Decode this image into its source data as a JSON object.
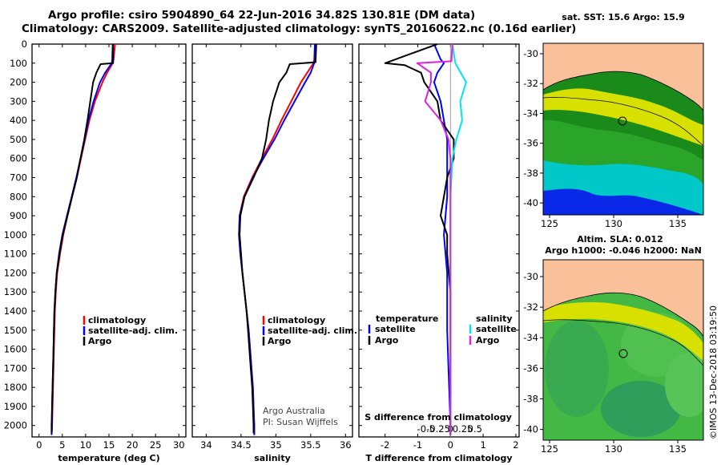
{
  "header": {
    "line1": "Argo profile: csiro 5904890_64 22-Jun-2016 34.82S 130.81E (DM data)",
    "line2": "Climatology: CARS2009. Satellite-adjusted climatology: synTS_20160622.nc (0.16d earlier)"
  },
  "watermark": "©IMOS 13-Dec-2018 03:19:50",
  "map_top": {
    "title": "sat. SST: 15.6 Argo: 15.9",
    "xticks": [
      "125",
      "130",
      "135"
    ],
    "yticks": [
      "-30",
      "-32",
      "-34",
      "-36",
      "-38",
      "-40"
    ]
  },
  "map_bottom": {
    "title1": "Altim. SLA: 0.012",
    "title2": "Argo h1000: -0.046 h2000: NaN",
    "xticks": [
      "125",
      "130",
      "135"
    ],
    "yticks": [
      "-30",
      "-32",
      "-34",
      "-36",
      "-38",
      "-40"
    ]
  },
  "colors": {
    "climatology": "#ff0000",
    "satellite": "#0000ff",
    "argo": "#000000",
    "sat_salinity": "#00e5ee",
    "argo_salinity": "#e020e0",
    "land": "#f9c09a"
  },
  "chart_data": [
    {
      "type": "line",
      "title": "",
      "xlabel": "temperature (deg C)",
      "ylabel": "",
      "xlim": [
        -1.5,
        31.5
      ],
      "ylim": [
        2060,
        0
      ],
      "xticks": [
        "0",
        "5",
        "10",
        "15",
        "20",
        "25",
        "30"
      ],
      "yticks": [
        "0",
        "100",
        "200",
        "300",
        "400",
        "500",
        "600",
        "700",
        "800",
        "900",
        "1000",
        "1100",
        "1200",
        "1300",
        "1400",
        "1500",
        "1600",
        "1700",
        "1800",
        "1900",
        "2000"
      ],
      "legend": [
        "climatology",
        "satellite-adj. clim.",
        "Argo"
      ],
      "series": [
        {
          "name": "climatology",
          "color": "#ff0000",
          "depth": [
            0,
            80,
            100,
            150,
            200,
            300,
            400,
            500,
            600,
            700,
            800,
            900,
            1000,
            1100,
            1200,
            1300,
            1400,
            1500,
            1600,
            1700,
            1800,
            1900,
            2000,
            2050
          ],
          "values": [
            16.3,
            16.0,
            15.8,
            14.6,
            13.6,
            12.0,
            10.8,
            9.9,
            9.0,
            8.1,
            7.1,
            6.1,
            5.2,
            4.5,
            3.9,
            3.6,
            3.4,
            3.3,
            3.2,
            3.1,
            3.0,
            2.9,
            2.8,
            2.7
          ]
        },
        {
          "name": "satellite-adj. clim.",
          "color": "#0000ff",
          "depth": [
            0,
            80,
            100,
            150,
            200,
            300,
            400,
            500,
            600,
            700,
            800,
            900,
            1000,
            1100,
            1200,
            1300,
            1400,
            1500,
            1600,
            1700,
            1800,
            1900,
            2000,
            2050
          ],
          "values": [
            15.8,
            15.7,
            15.6,
            14.2,
            13.1,
            11.7,
            10.6,
            9.8,
            8.9,
            8.0,
            7.0,
            6.0,
            5.0,
            4.3,
            3.8,
            3.5,
            3.3,
            3.2,
            3.1,
            3.0,
            2.9,
            2.8,
            2.8,
            2.7
          ]
        },
        {
          "name": "Argo",
          "color": "#000000",
          "depth": [
            0,
            100,
            105,
            150,
            200,
            300,
            400,
            500,
            600,
            700,
            800,
            900,
            1000,
            1100,
            1200,
            1300,
            1400,
            1500,
            1600,
            1700,
            1800,
            1900,
            2000,
            2040
          ],
          "values": [
            15.9,
            15.9,
            13.2,
            12.3,
            11.6,
            11.0,
            10.4,
            9.7,
            8.9,
            8.1,
            7.1,
            6.1,
            5.1,
            4.4,
            3.8,
            3.5,
            3.3,
            3.2,
            3.1,
            3.0,
            2.9,
            2.8,
            2.7,
            2.7
          ]
        }
      ]
    },
    {
      "type": "line",
      "title": "",
      "xlabel": "salinity",
      "ylabel": "",
      "xlim": [
        33.8,
        36.1
      ],
      "ylim": [
        2060,
        0
      ],
      "xticks": [
        "34",
        "34.5",
        "35",
        "35.5",
        "36"
      ],
      "legend": [
        "climatology",
        "satellite-adj. clim.",
        "Argo"
      ],
      "annotations": [
        "Argo Australia",
        "PI: Susan Wijffels"
      ],
      "series": [
        {
          "name": "climatology",
          "color": "#ff0000",
          "depth": [
            0,
            80,
            100,
            150,
            200,
            300,
            400,
            500,
            600,
            700,
            800,
            900,
            1000,
            1100,
            1200,
            1300,
            1400,
            1500,
            1600,
            1700,
            1800,
            1900,
            2000,
            2050
          ],
          "values": [
            35.56,
            35.55,
            35.54,
            35.45,
            35.36,
            35.22,
            35.08,
            34.95,
            34.8,
            34.66,
            34.54,
            34.48,
            34.47,
            34.49,
            34.52,
            34.55,
            34.58,
            34.61,
            34.63,
            34.65,
            34.67,
            34.68,
            34.69,
            34.69
          ]
        },
        {
          "name": "satellite-adj. clim.",
          "color": "#0000ff",
          "depth": [
            0,
            80,
            100,
            150,
            200,
            300,
            400,
            500,
            600,
            700,
            800,
            900,
            1000,
            1100,
            1200,
            1300,
            1400,
            1500,
            1600,
            1700,
            1800,
            1900,
            2000,
            2050
          ],
          "values": [
            35.56,
            35.56,
            35.55,
            35.5,
            35.42,
            35.27,
            35.12,
            34.98,
            34.82,
            34.67,
            34.55,
            34.48,
            34.47,
            34.49,
            34.52,
            34.55,
            34.58,
            34.61,
            34.63,
            34.65,
            34.67,
            34.68,
            34.69,
            34.69
          ]
        },
        {
          "name": "Argo",
          "color": "#000000",
          "depth": [
            0,
            95,
            105,
            150,
            200,
            300,
            400,
            500,
            600,
            700,
            800,
            900,
            1000,
            1100,
            1200,
            1300,
            1400,
            1500,
            1600,
            1700,
            1800,
            1900,
            2000,
            2040
          ],
          "values": [
            35.58,
            35.57,
            35.2,
            35.15,
            35.05,
            34.96,
            34.9,
            34.86,
            34.8,
            34.68,
            34.55,
            34.49,
            34.48,
            34.5,
            34.52,
            34.55,
            34.58,
            34.6,
            34.62,
            34.64,
            34.66,
            34.67,
            34.68,
            34.68
          ]
        }
      ]
    },
    {
      "type": "line",
      "title": "",
      "xlabel": "T difference from climatology",
      "xlabel2": "S difference from climatology",
      "ylabel": "",
      "xlim": [
        -2.8,
        2.1
      ],
      "ylim": [
        2060,
        0
      ],
      "xticks": [
        "-2",
        "-1",
        "0",
        "1",
        "2"
      ],
      "xticks2": [
        "-0.5",
        "-0.25",
        "0",
        "0.25",
        "0.5"
      ],
      "legend_left": {
        "title": "temperature",
        "items": [
          "satellite",
          "Argo"
        ]
      },
      "legend_right": {
        "title": "salinity",
        "items": [
          "satellite",
          "Argo"
        ]
      },
      "series": [
        {
          "name": "temperature satellite",
          "color": "#0000ff",
          "depth": [
            0,
            80,
            100,
            150,
            200,
            300,
            400,
            500,
            600,
            800,
            1000,
            1200,
            1500,
            2000,
            2050
          ],
          "values": [
            -0.5,
            -0.3,
            -0.2,
            -0.4,
            -0.5,
            -0.3,
            -0.2,
            -0.1,
            -0.1,
            -0.1,
            -0.2,
            -0.1,
            -0.1,
            0,
            0
          ]
        },
        {
          "name": "temperature Argo",
          "color": "#000000",
          "depth": [
            0,
            100,
            110,
            150,
            200,
            300,
            400,
            500,
            600,
            700,
            800,
            900,
            1000,
            1100,
            1200,
            1300,
            1500,
            2000,
            2050
          ],
          "values": [
            -0.4,
            -2.0,
            -1.4,
            -0.9,
            -0.8,
            -0.4,
            -0.3,
            0.1,
            0.1,
            -0.1,
            -0.2,
            -0.3,
            -0.1,
            -0.1,
            -0.05,
            0,
            0,
            0,
            0
          ]
        },
        {
          "name": "salinity satellite",
          "color": "#00e5ee",
          "depth": [
            0,
            100,
            200,
            300,
            400,
            500,
            600,
            800,
            1000,
            1500,
            2000,
            2050
          ],
          "values": [
            0.02,
            0.05,
            0.16,
            0.1,
            0.12,
            0.06,
            0.02,
            0,
            0,
            0,
            0,
            0
          ]
        },
        {
          "name": "salinity Argo",
          "color": "#e020e0",
          "depth": [
            0,
            90,
            100,
            150,
            200,
            300,
            400,
            500,
            600,
            800,
            1000,
            1500,
            2000,
            2050
          ],
          "values": [
            0.02,
            0.01,
            -0.34,
            -0.2,
            -0.2,
            -0.26,
            -0.1,
            -0.02,
            0,
            0,
            0,
            0,
            0,
            0
          ]
        }
      ]
    }
  ]
}
